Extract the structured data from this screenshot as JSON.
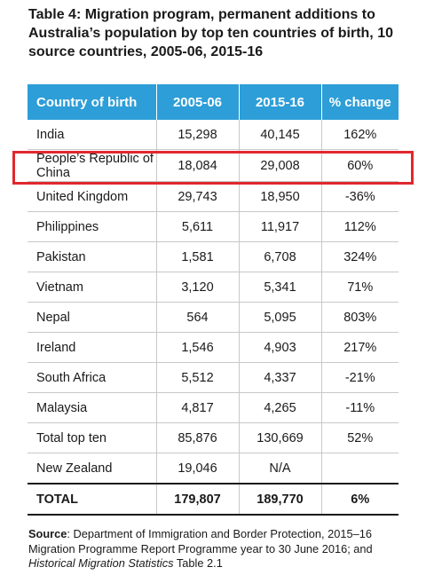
{
  "title": "Table 4:  Migration program, permanent additions to Australia’s population by top ten countries of birth, 10 source countries, 2005-06, 2015-16",
  "columns": [
    "Country of birth",
    "2005-06",
    "2015-16",
    "% change"
  ],
  "rows": [
    {
      "country": "India",
      "y2005": "15,298",
      "y2015": "40,145",
      "change": "162%"
    },
    {
      "country": "People’s Republic of China",
      "y2005": "18,084",
      "y2015": "29,008",
      "change": "60%"
    },
    {
      "country": "United Kingdom",
      "y2005": "29,743",
      "y2015": "18,950",
      "change": "-36%"
    },
    {
      "country": "Philippines",
      "y2005": "5,611",
      "y2015": "11,917",
      "change": "112%"
    },
    {
      "country": "Pakistan",
      "y2005": "1,581",
      "y2015": "6,708",
      "change": "324%"
    },
    {
      "country": "Vietnam",
      "y2005": "3,120",
      "y2015": "5,341",
      "change": "71%"
    },
    {
      "country": "Nepal",
      "y2005": "564",
      "y2015": "5,095",
      "change": "803%"
    },
    {
      "country": "Ireland",
      "y2005": "1,546",
      "y2015": "4,903",
      "change": "217%"
    },
    {
      "country": "South Africa",
      "y2005": "5,512",
      "y2015": "4,337",
      "change": "-21%"
    },
    {
      "country": "Malaysia",
      "y2005": "4,817",
      "y2015": "4,265",
      "change": "-11%"
    },
    {
      "country": "Total top ten",
      "y2005": "85,876",
      "y2015": "130,669",
      "change": "52%"
    },
    {
      "country": "New Zealand",
      "y2005": "19,046",
      "y2015": "N/A",
      "change": ""
    },
    {
      "country": "TOTAL",
      "y2005": "179,807",
      "y2015": "189,770",
      "change": "6%"
    }
  ],
  "source": {
    "label": "Source",
    "text1": ": Department of Immigration and Border Protection, 2015–16 Migration Programme Report Programme year to 30 June 2016; and ",
    "italic": "Historical Migration Statistics",
    "text2": " Table 2.1"
  },
  "colors": {
    "header": "#2d9ed8",
    "highlight": "#e0282e"
  }
}
